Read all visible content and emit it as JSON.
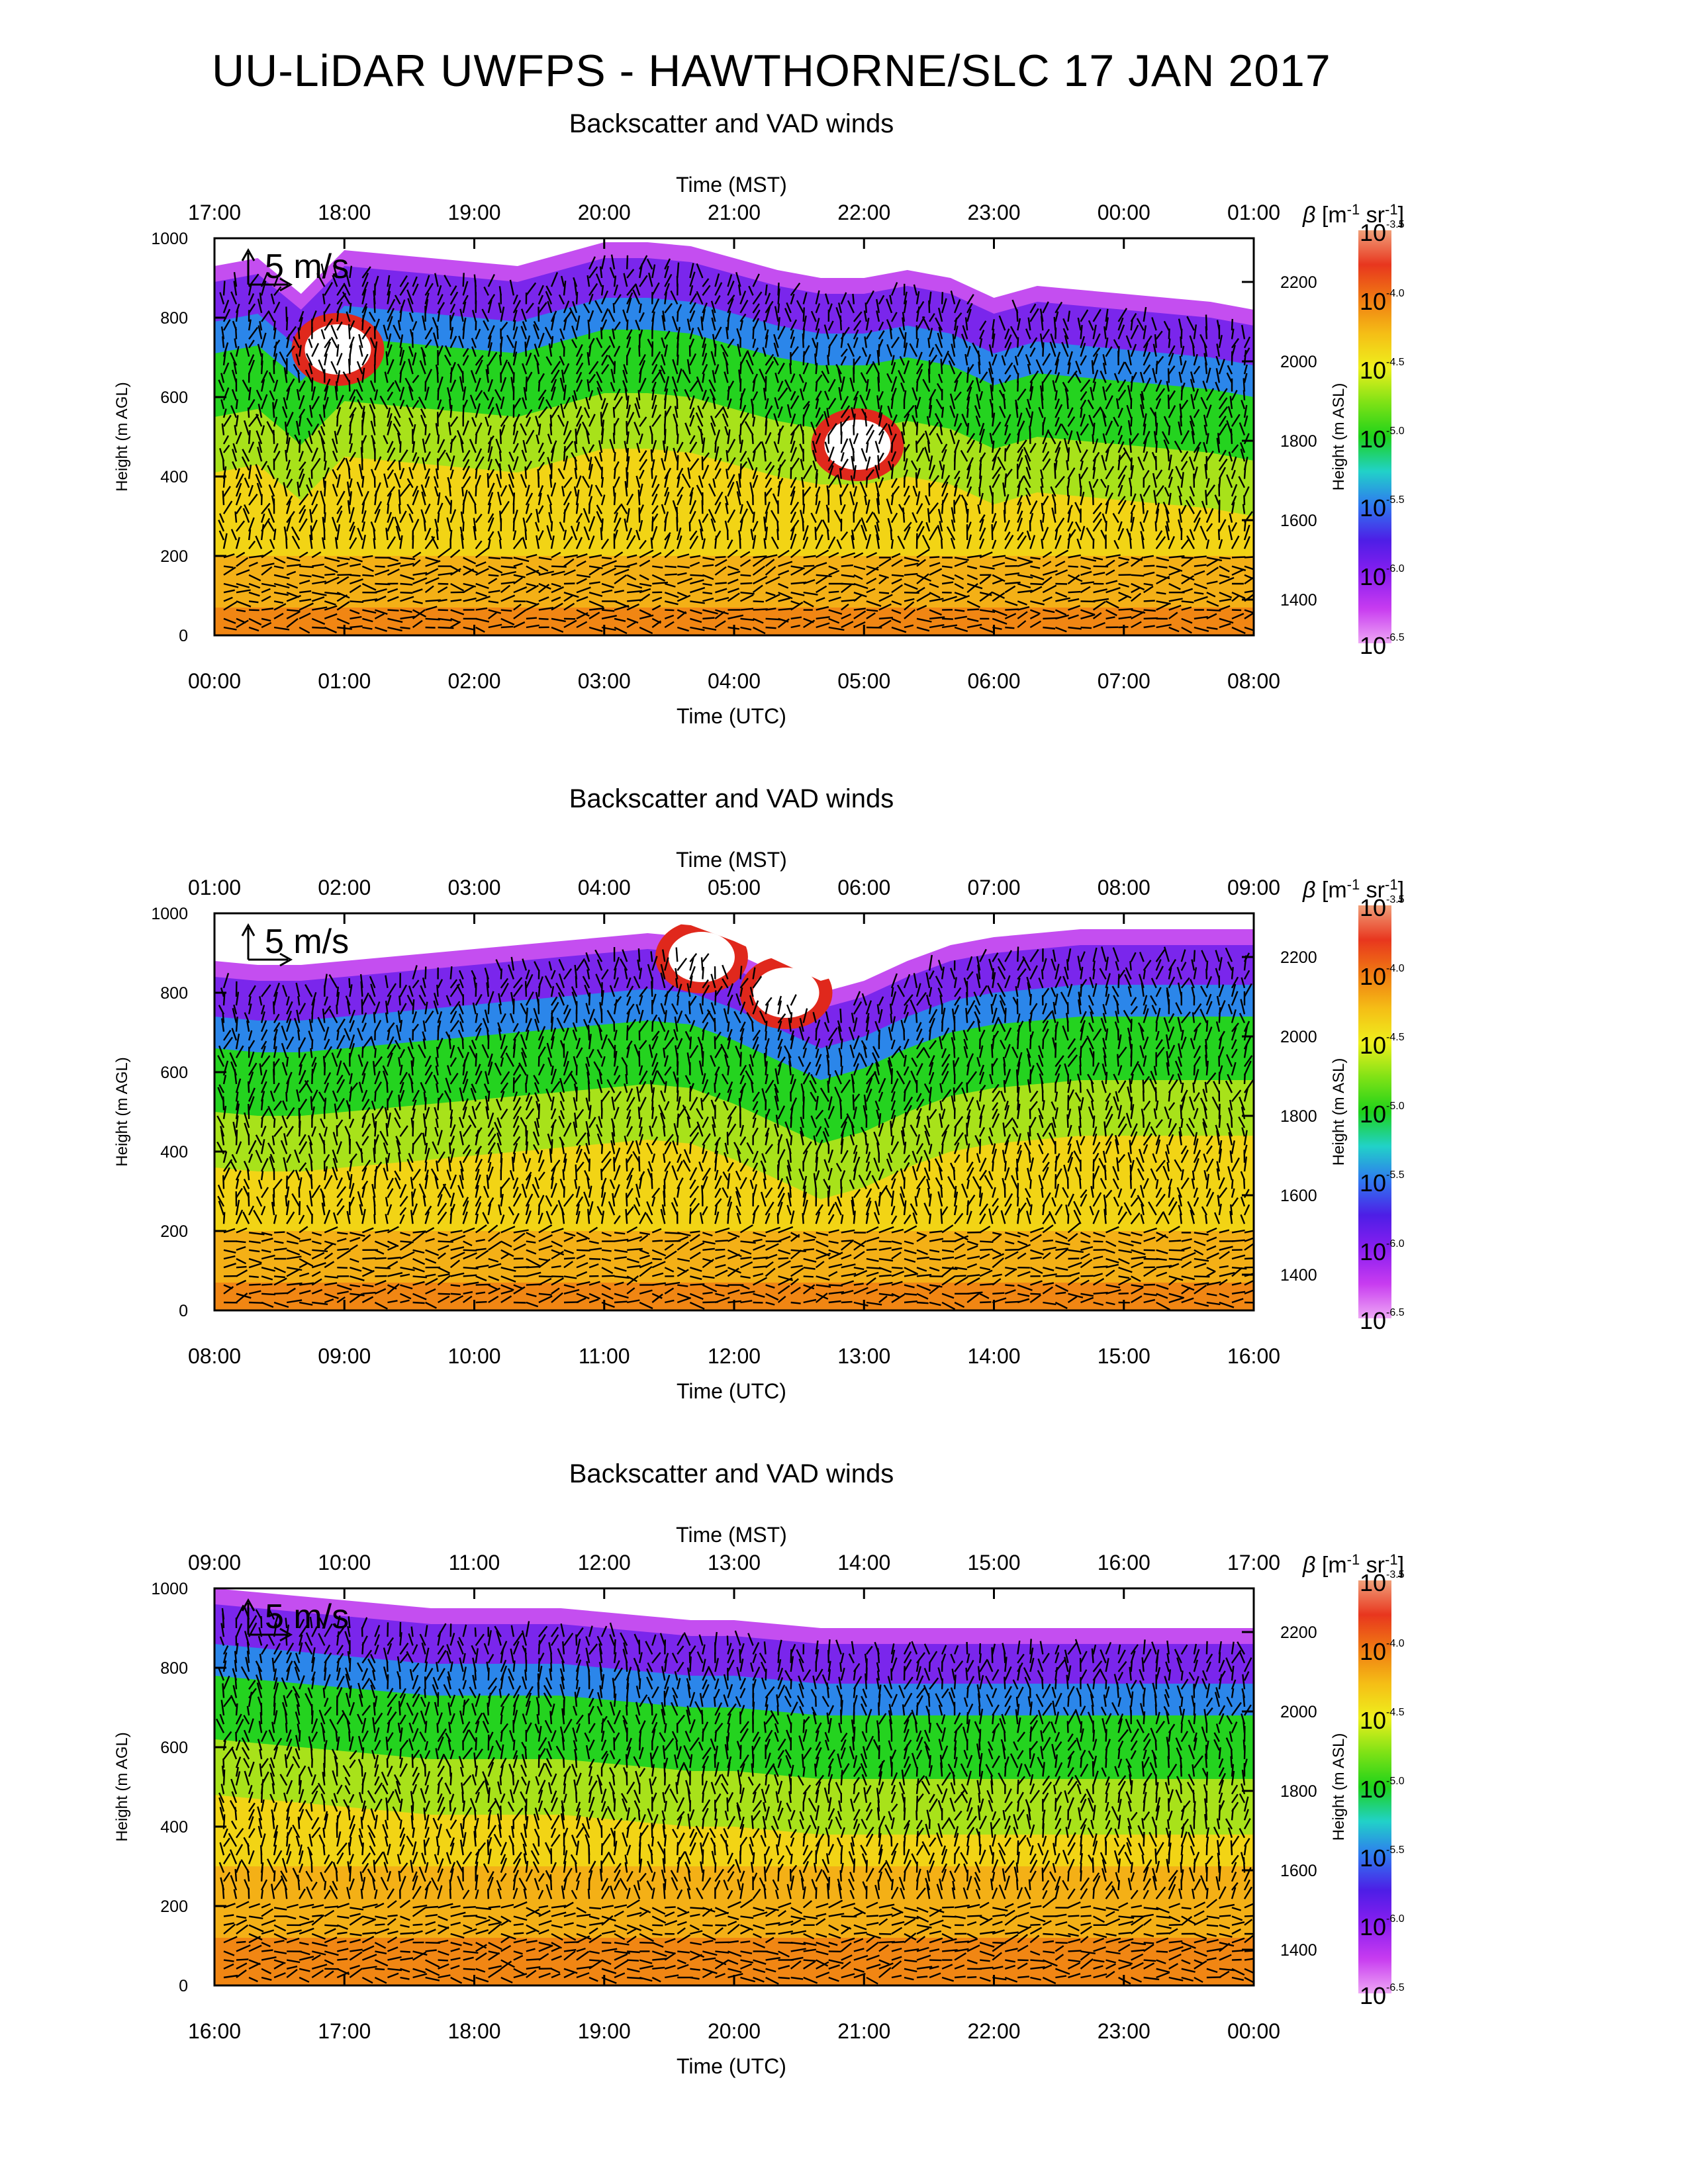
{
  "main_title": "UU-LiDAR UWFPS - HAWTHORNE/SLC 17 JAN 2017",
  "colorbar": {
    "label_html": [
      "β",
      " [m",
      "-1",
      " sr",
      "-1",
      "]"
    ],
    "base": "10",
    "exponents": [
      "-3.5",
      "-4.0",
      "-4.5",
      "-5.0",
      "-5.5",
      "-6.0",
      "-6.5"
    ],
    "colors": [
      "#f0a07a",
      "#e8361e",
      "#f07b12",
      "#f5be16",
      "#eef01c",
      "#7fe216",
      "#1ed21a",
      "#21d2c8",
      "#2f78f0",
      "#4d1ee6",
      "#8a1ef0",
      "#c83cf0",
      "#eea8f5"
    ]
  },
  "scale_arrow_label": "5 m/s",
  "background_colors": {
    "surface": "#f07c13",
    "mid": "#f2d415",
    "upper": "#24d31f",
    "top": "#7a26ec",
    "cap": "#c44ef0"
  },
  "chart_data": [
    {
      "type": "heatmap",
      "title": "Backscatter and VAD winds",
      "top_axis_label": "Time (MST)",
      "top_ticks": [
        "17:00",
        "18:00",
        "19:00",
        "20:00",
        "21:00",
        "22:00",
        "23:00",
        "00:00",
        "01:00"
      ],
      "xlabel": "Time (UTC)",
      "x_ticks": [
        "00:00",
        "01:00",
        "02:00",
        "03:00",
        "04:00",
        "05:00",
        "06:00",
        "07:00",
        "08:00"
      ],
      "ylabel": "Height (m AGL)",
      "y_ticks": [
        "0",
        "200",
        "400",
        "600",
        "800",
        "1000"
      ],
      "ylim": [
        0,
        1000
      ],
      "right_ylabel": "Height (m ASL)",
      "right_ticks": [
        "1400",
        "1600",
        "1800",
        "2000",
        "2200"
      ],
      "aerosol_top_m": [
        930,
        950,
        860,
        970,
        960,
        950,
        940,
        930,
        960,
        990,
        990,
        980,
        950,
        920,
        900,
        900,
        920,
        900,
        850,
        880,
        870,
        860,
        850,
        840,
        820
      ],
      "clouds": [
        {
          "utc_hour": 0.95,
          "height_m": 720
        },
        {
          "utc_hour": 4.95,
          "height_m": 480
        }
      ]
    },
    {
      "type": "heatmap",
      "title": "Backscatter and VAD winds",
      "top_axis_label": "Time (MST)",
      "top_ticks": [
        "01:00",
        "02:00",
        "03:00",
        "04:00",
        "05:00",
        "06:00",
        "07:00",
        "08:00",
        "09:00"
      ],
      "xlabel": "Time (UTC)",
      "x_ticks": [
        "08:00",
        "09:00",
        "10:00",
        "11:00",
        "12:00",
        "13:00",
        "14:00",
        "15:00",
        "16:00"
      ],
      "ylabel": "Height (m AGL)",
      "y_ticks": [
        "0",
        "200",
        "400",
        "600",
        "800",
        "1000"
      ],
      "ylim": [
        0,
        1000
      ],
      "right_ylabel": "Height (m ASL)",
      "right_ticks": [
        "1400",
        "1600",
        "1800",
        "2000",
        "2200"
      ],
      "aerosol_top_m": [
        880,
        870,
        870,
        880,
        890,
        900,
        910,
        920,
        930,
        940,
        950,
        940,
        900,
        850,
        800,
        830,
        880,
        920,
        940,
        950,
        960,
        960,
        960,
        960,
        960
      ],
      "clouds": [
        {
          "utc_hour": 11.75,
          "height_m": 890
        },
        {
          "utc_hour": 12.4,
          "height_m": 800
        }
      ]
    },
    {
      "type": "heatmap",
      "title": "Backscatter and VAD winds",
      "top_axis_label": "Time (MST)",
      "top_ticks": [
        "09:00",
        "10:00",
        "11:00",
        "12:00",
        "13:00",
        "14:00",
        "15:00",
        "16:00",
        "17:00"
      ],
      "xlabel": "Time (UTC)",
      "x_ticks": [
        "16:00",
        "17:00",
        "18:00",
        "19:00",
        "20:00",
        "21:00",
        "22:00",
        "23:00",
        "00:00"
      ],
      "ylabel": "Height (m AGL)",
      "y_ticks": [
        "0",
        "200",
        "400",
        "600",
        "800",
        "1000"
      ],
      "ylim": [
        0,
        1000
      ],
      "right_ylabel": "Height (m ASL)",
      "right_ticks": [
        "1400",
        "1600",
        "1800",
        "2000",
        "2200"
      ],
      "aerosol_top_m": [
        1000,
        990,
        980,
        970,
        960,
        950,
        950,
        950,
        950,
        940,
        930,
        920,
        920,
        910,
        900,
        900,
        900,
        900,
        900,
        900,
        900,
        900,
        900,
        900,
        900
      ],
      "clouds": []
    }
  ]
}
